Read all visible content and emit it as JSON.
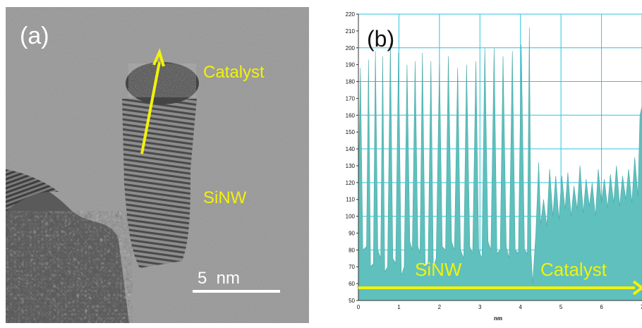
{
  "panel_a": {
    "label": "(a)",
    "catalyst_label": "Catalyst",
    "sinw_label": "SiNW",
    "scale_bar_label": "5  nm",
    "colors": {
      "annotation": "#f2f20a",
      "scale_bar": "#ffffff"
    }
  },
  "panel_b": {
    "label": "(b)",
    "sinw_label": "SiNW",
    "catalyst_label": "Catalyst",
    "colors": {
      "fill": "#5fc0bd",
      "annotation": "#f2f20a",
      "grid": "#29c6e0",
      "background": "#ffffff"
    }
  },
  "chart_data": {
    "type": "area",
    "title": "",
    "xlabel": "nm",
    "ylabel": "",
    "xlim": [
      0,
      7
    ],
    "ylim": [
      50,
      220
    ],
    "xticks": [
      0,
      1,
      2,
      3,
      4,
      5,
      6,
      7
    ],
    "yticks": [
      50,
      60,
      70,
      80,
      90,
      100,
      110,
      120,
      130,
      140,
      150,
      160,
      170,
      180,
      190,
      200,
      210,
      220
    ],
    "tick_labels_x": [
      "0",
      "1",
      "2",
      "3",
      "4",
      "5",
      "6",
      "7"
    ],
    "tick_labels_y": [
      "50",
      "60",
      "70",
      "80",
      "90",
      "100",
      "110",
      "120",
      "130",
      "140",
      "150",
      "160",
      "170",
      "180",
      "190",
      "200",
      "210",
      "220"
    ],
    "grid": true,
    "series": [
      {
        "x": [
          0.0,
          0.05,
          0.11,
          0.2,
          0.25,
          0.3,
          0.37,
          0.42,
          0.48,
          0.55,
          0.6,
          0.65,
          0.72,
          0.79,
          0.85,
          0.92,
          0.99,
          1.06,
          1.13,
          1.2,
          1.27,
          1.33,
          1.4,
          1.47,
          1.52,
          1.58,
          1.65,
          1.72,
          1.79,
          1.85,
          1.92,
          2.0,
          2.07,
          2.15,
          2.22,
          2.3,
          2.37,
          2.45,
          2.52,
          2.6,
          2.67,
          2.75,
          2.82,
          2.9,
          2.97,
          3.05,
          3.12,
          3.2,
          3.27,
          3.35,
          3.42,
          3.5,
          3.57,
          3.65,
          3.72,
          3.8,
          3.87,
          3.95,
          4.02,
          4.1,
          4.17,
          4.22,
          4.26,
          4.3,
          4.38,
          4.45,
          4.5,
          4.57,
          4.65,
          4.72,
          4.8,
          4.87,
          4.95,
          5.02,
          5.1,
          5.17,
          5.25,
          5.32,
          5.4,
          5.47,
          5.55,
          5.62,
          5.7,
          5.77,
          5.85,
          5.92,
          6.0,
          6.07,
          6.15,
          6.22,
          6.3,
          6.37,
          6.45,
          6.52,
          6.6,
          6.67,
          6.75,
          6.82,
          6.9,
          6.95,
          7.0
        ],
        "values": [
          120,
          188,
          80,
          82,
          193,
          70,
          72,
          198,
          80,
          75,
          195,
          67,
          70,
          203,
          75,
          72,
          197,
          65,
          70,
          190,
          85,
          80,
          192,
          82,
          78,
          197,
          70,
          72,
          192,
          70,
          75,
          191,
          82,
          80,
          195,
          85,
          80,
          188,
          80,
          75,
          190,
          82,
          78,
          192,
          80,
          75,
          200,
          85,
          80,
          200,
          78,
          80,
          195,
          82,
          75,
          198,
          80,
          78,
          202,
          80,
          78,
          212,
          80,
          60,
          90,
          132,
          95,
          110,
          94,
          128,
          100,
          124,
          98,
          124,
          104,
          126,
          100,
          118,
          104,
          130,
          102,
          122,
          106,
          120,
          100,
          128,
          108,
          122,
          105,
          125,
          108,
          130,
          106,
          124,
          110,
          128,
          108,
          135,
          112,
          160,
          165
        ]
      }
    ],
    "annotations": [
      "(b)",
      "SiNW",
      "Catalyst"
    ]
  }
}
